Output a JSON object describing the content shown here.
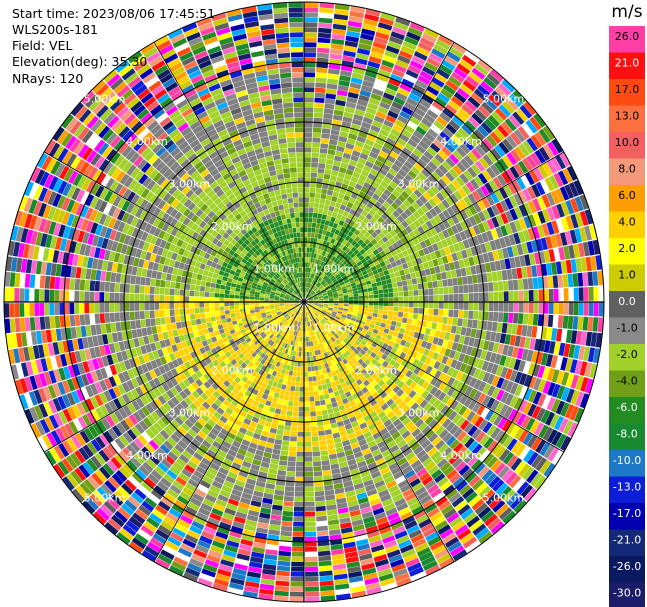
{
  "header": {
    "start_time": "Start time: 2023/08/06 17:45:51",
    "instrument": "WLS200s-181",
    "field": "Field: VEL",
    "elevation": "Elevation(deg): 35.30",
    "nrays": "NRays: 120"
  },
  "ppi": {
    "ring_labels": [
      "1.00km",
      "2.00km",
      "3.00km",
      "4.00km",
      "5.00km"
    ],
    "colors": {
      "grid": "#000000",
      "gray": "#808080",
      "label": "#ffffff"
    }
  },
  "colorbar": {
    "unit": "m/s",
    "ticks": [
      "26.0",
      "21.0",
      "17.0",
      "13.0",
      "10.0",
      "8.0",
      "6.0",
      "4.0",
      "2.0",
      "1.0",
      "0.0",
      "-1.0",
      "-2.0",
      "-4.0",
      "-6.0",
      "-8.0",
      "-10.0",
      "-13.0",
      "-17.0",
      "-21.0",
      "-26.0",
      "-30.0"
    ],
    "colors": [
      "#ff3fa6",
      "#ff1010",
      "#ff4a12",
      "#ff7040",
      "#f46060",
      "#f49a7a",
      "#ff9e00",
      "#ffd000",
      "#ffff00",
      "#cccc00",
      "#606060",
      "#8a8a8a",
      "#a3d12c",
      "#6fa018",
      "#228b22",
      "#17892f",
      "#1e78c8",
      "#0c1ed8",
      "#0000b0",
      "#142a78",
      "#0a1a60",
      "#1c1c6a"
    ]
  }
}
